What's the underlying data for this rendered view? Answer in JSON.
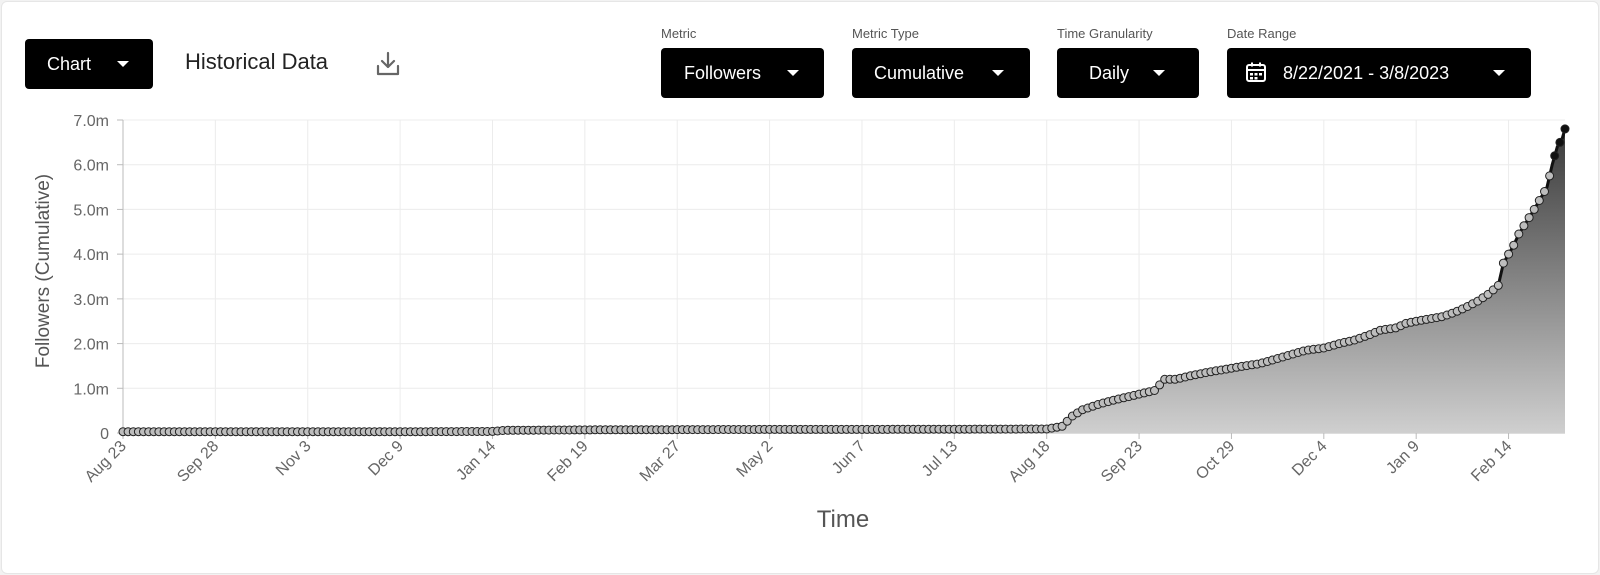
{
  "toolbar": {
    "view_button": "Chart",
    "title": "Historical Data",
    "download_icon": "download-icon"
  },
  "controls": [
    {
      "label": "Metric",
      "value": "Followers"
    },
    {
      "label": "Metric Type",
      "value": "Cumulative"
    },
    {
      "label": "Time Granularity",
      "value": "Daily"
    },
    {
      "label": "Date Range",
      "value": "8/22/2021 - 3/8/2023",
      "icon": "calendar-icon"
    }
  ],
  "colors": {
    "accent": "#000000",
    "fill_top": "#3a3a3a",
    "fill_bottom": "#cfcfcf",
    "marker": "#bdbdbd"
  },
  "chart_data": {
    "type": "area",
    "title": "",
    "xlabel": "Time",
    "ylabel": "Followers (Cumulative)",
    "ylim": [
      0,
      7000000
    ],
    "xlim": [
      "2021-08-23",
      "2023-03-08"
    ],
    "y_ticks": [
      "0",
      "1.0m",
      "2.0m",
      "3.0m",
      "4.0m",
      "5.0m",
      "6.0m",
      "7.0m"
    ],
    "x_ticks": [
      "Aug 23",
      "Sep 28",
      "Nov 3",
      "Dec 9",
      "Jan 14",
      "Feb 19",
      "Mar 27",
      "May 2",
      "Jun 7",
      "Jul 13",
      "Aug 18",
      "Sep 23",
      "Oct 29",
      "Dec 4",
      "Jan 9",
      "Feb 14"
    ],
    "x_tick_dates": [
      "2021-08-23",
      "2021-09-28",
      "2021-11-03",
      "2021-12-09",
      "2022-01-14",
      "2022-02-19",
      "2022-03-27",
      "2022-05-02",
      "2022-06-07",
      "2022-07-13",
      "2022-08-18",
      "2022-09-23",
      "2022-10-29",
      "2022-12-04",
      "2023-01-09",
      "2023-02-14"
    ],
    "grid": true,
    "series": [
      {
        "points": [
          [
            "2021-08-23",
            30000
          ],
          [
            "2021-10-15",
            30000
          ],
          [
            "2021-12-20",
            30000
          ],
          [
            "2022-01-14",
            35000
          ],
          [
            "2022-01-19",
            60000
          ],
          [
            "2022-02-19",
            70000
          ],
          [
            "2022-03-27",
            75000
          ],
          [
            "2022-05-02",
            80000
          ],
          [
            "2022-06-07",
            80000
          ],
          [
            "2022-07-13",
            85000
          ],
          [
            "2022-08-18",
            90000
          ],
          [
            "2022-08-24",
            150000
          ],
          [
            "2022-08-28",
            380000
          ],
          [
            "2022-09-01",
            520000
          ],
          [
            "2022-09-06",
            620000
          ],
          [
            "2022-09-12",
            720000
          ],
          [
            "2022-09-18",
            800000
          ],
          [
            "2022-09-23",
            870000
          ],
          [
            "2022-09-29",
            950000
          ],
          [
            "2022-10-03",
            1200000
          ],
          [
            "2022-10-07",
            1200000
          ],
          [
            "2022-10-13",
            1280000
          ],
          [
            "2022-10-19",
            1350000
          ],
          [
            "2022-10-24",
            1400000
          ],
          [
            "2022-10-29",
            1450000
          ],
          [
            "2022-11-03",
            1500000
          ],
          [
            "2022-11-09",
            1550000
          ],
          [
            "2022-11-15",
            1650000
          ],
          [
            "2022-11-21",
            1750000
          ],
          [
            "2022-11-27",
            1850000
          ],
          [
            "2022-12-04",
            1900000
          ],
          [
            "2022-12-10",
            2000000
          ],
          [
            "2022-12-16",
            2080000
          ],
          [
            "2022-12-22",
            2200000
          ],
          [
            "2022-12-26",
            2300000
          ],
          [
            "2023-01-01",
            2350000
          ],
          [
            "2023-01-05",
            2450000
          ],
          [
            "2023-01-09",
            2500000
          ],
          [
            "2023-01-14",
            2550000
          ],
          [
            "2023-01-19",
            2600000
          ],
          [
            "2023-01-24",
            2700000
          ],
          [
            "2023-01-28",
            2800000
          ],
          [
            "2023-02-02",
            2950000
          ],
          [
            "2023-02-06",
            3100000
          ],
          [
            "2023-02-10",
            3300000
          ],
          [
            "2023-02-12",
            3800000
          ],
          [
            "2023-02-14",
            4000000
          ],
          [
            "2023-02-16",
            4200000
          ],
          [
            "2023-02-18",
            4450000
          ],
          [
            "2023-02-24",
            5000000
          ],
          [
            "2023-03-01",
            5500000
          ],
          [
            "2023-03-03",
            6000000
          ],
          [
            "2023-03-05",
            6400000
          ],
          [
            "2023-03-07",
            6600000
          ],
          [
            "2023-03-08",
            6800000
          ]
        ]
      }
    ]
  }
}
